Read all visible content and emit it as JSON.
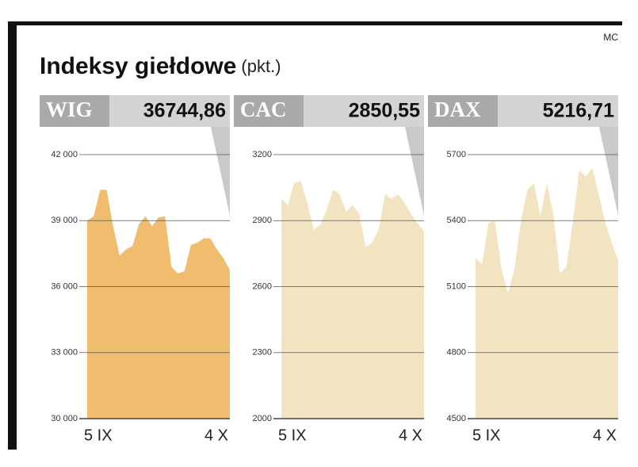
{
  "title": "Indeksy giełdowe",
  "unit": "(pkt.)",
  "source": "MC",
  "chart_data": [
    {
      "type": "area",
      "name": "WIG",
      "header_value": "36744,86",
      "color": "#f0bd6e",
      "categories": [
        "5 IX",
        null,
        null,
        null,
        null,
        null,
        null,
        null,
        null,
        null,
        null,
        null,
        null,
        null,
        null,
        null,
        null,
        null,
        null,
        null,
        null,
        null,
        "4 X"
      ],
      "values": [
        39000,
        39200,
        40400,
        40400,
        38750,
        37400,
        37700,
        37850,
        38850,
        39200,
        38750,
        39150,
        39200,
        36900,
        36600,
        36700,
        37900,
        38000,
        38200,
        38200,
        37700,
        37300,
        36744.86
      ],
      "ylim": [
        30000,
        42000
      ],
      "yticks": [
        {
          "value": 30000,
          "label": "30 000"
        },
        {
          "value": 33000,
          "label": "33 000"
        },
        {
          "value": 36000,
          "label": "36 000"
        },
        {
          "value": 39000,
          "label": "39 000"
        },
        {
          "value": 42000,
          "label": "42 000"
        }
      ],
      "grid": true
    },
    {
      "type": "area",
      "name": "CAC",
      "header_value": "2850,55",
      "color": "#f2e4c0",
      "categories": [
        "5 IX",
        null,
        null,
        null,
        null,
        null,
        null,
        null,
        null,
        null,
        null,
        null,
        null,
        null,
        null,
        null,
        null,
        null,
        null,
        null,
        null,
        null,
        "4 X"
      ],
      "values": [
        3000,
        2970,
        3070,
        3080,
        2980,
        2860,
        2880,
        2950,
        3040,
        3020,
        2940,
        2970,
        2930,
        2780,
        2800,
        2860,
        3020,
        3000,
        3020,
        2980,
        2930,
        2890,
        2850.55
      ],
      "ylim": [
        2000,
        3200
      ],
      "yticks": [
        2000,
        2300,
        2600,
        2900,
        3200
      ],
      "grid": true
    },
    {
      "type": "area",
      "name": "DAX",
      "header_value": "5216,71",
      "color": "#f2e4c0",
      "categories": [
        "5 IX",
        null,
        null,
        null,
        null,
        null,
        null,
        null,
        null,
        null,
        null,
        null,
        null,
        null,
        null,
        null,
        null,
        null,
        null,
        null,
        null,
        null,
        "4 X"
      ],
      "values": [
        5230,
        5200,
        5390,
        5400,
        5180,
        5070,
        5180,
        5400,
        5540,
        5570,
        5420,
        5570,
        5430,
        5160,
        5190,
        5390,
        5630,
        5600,
        5640,
        5520,
        5390,
        5300,
        5216.71
      ],
      "ylim": [
        4500,
        5700
      ],
      "yticks": [
        4500,
        4800,
        5100,
        5400,
        5700
      ],
      "grid": true
    }
  ]
}
